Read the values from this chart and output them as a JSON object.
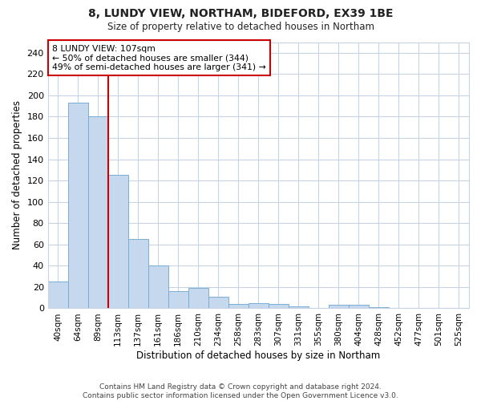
{
  "title": "8, LUNDY VIEW, NORTHAM, BIDEFORD, EX39 1BE",
  "subtitle": "Size of property relative to detached houses in Northam",
  "xlabel": "Distribution of detached houses by size in Northam",
  "ylabel": "Number of detached properties",
  "bin_labels": [
    "40sqm",
    "64sqm",
    "89sqm",
    "113sqm",
    "137sqm",
    "161sqm",
    "186sqm",
    "210sqm",
    "234sqm",
    "258sqm",
    "283sqm",
    "307sqm",
    "331sqm",
    "355sqm",
    "380sqm",
    "404sqm",
    "428sqm",
    "452sqm",
    "477sqm",
    "501sqm",
    "525sqm"
  ],
  "bar_values": [
    25,
    193,
    180,
    125,
    65,
    40,
    16,
    19,
    11,
    4,
    5,
    4,
    2,
    0,
    3,
    3,
    1,
    0,
    0,
    0,
    0
  ],
  "bar_color": "#c5d8ee",
  "bar_edge_color": "#7aadd4",
  "grid_color": "#c8d4e4",
  "vline_x": 2.5,
  "vline_color": "#cc0000",
  "annotation_text": "8 LUNDY VIEW: 107sqm\n← 50% of detached houses are smaller (344)\n49% of semi-detached houses are larger (341) →",
  "annotation_box_color": "#ffffff",
  "annotation_box_edge": "#cc0000",
  "ylim": [
    0,
    250
  ],
  "yticks": [
    0,
    20,
    40,
    60,
    80,
    100,
    120,
    140,
    160,
    180,
    200,
    220,
    240
  ],
  "footer": "Contains HM Land Registry data © Crown copyright and database right 2024.\nContains public sector information licensed under the Open Government Licence v3.0.",
  "bg_color": "#ffffff",
  "plot_bg_color": "#ffffff"
}
